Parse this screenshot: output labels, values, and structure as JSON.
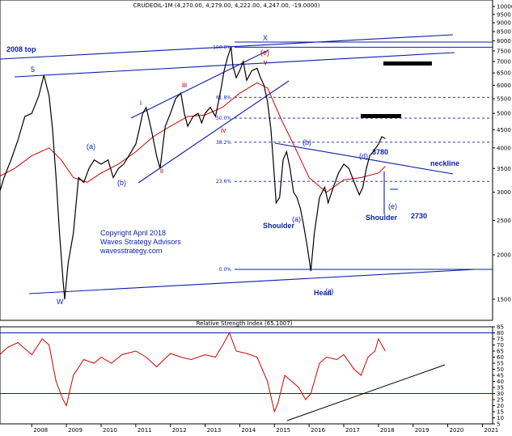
{
  "chart_data": [
    {
      "type": "line",
      "title": "CRUDEOIL-1M (4,270.00, 4,279.00, 4,222.00, 4,247.00, -19.0000)",
      "ylim": [
        1350,
        10000
      ],
      "y_scale": "log",
      "y_ticks": [
        10000,
        9500,
        9000,
        8500,
        8000,
        7500,
        7000,
        6500,
        6000,
        5500,
        5000,
        4500,
        4000,
        3500,
        3000,
        2500,
        2000,
        1500
      ],
      "x_ticks": [
        "2008",
        "2009",
        "2010",
        "2011",
        "2012",
        "2013",
        "2014",
        "2015",
        "2016",
        "2017",
        "2018",
        "2019",
        "2020",
        "2021"
      ],
      "series": [
        {
          "values": [
            [
              2007.0,
              2850
            ],
            [
              2007.2,
              3300
            ],
            [
              2007.4,
              3700
            ],
            [
              2007.6,
              4200
            ],
            [
              2007.8,
              4900
            ],
            [
              2008.0,
              5000
            ],
            [
              2008.2,
              5600
            ],
            [
              2008.35,
              6400
            ],
            [
              2008.5,
              5600
            ],
            [
              2008.6,
              4500
            ],
            [
              2008.7,
              3300
            ],
            [
              2008.8,
              2300
            ],
            [
              2008.9,
              1700
            ],
            [
              2008.95,
              1500
            ],
            [
              2009.05,
              1900
            ],
            [
              2009.2,
              2300
            ],
            [
              2009.35,
              3300
            ],
            [
              2009.5,
              3200
            ],
            [
              2009.65,
              3500
            ],
            [
              2009.8,
              3700
            ],
            [
              2010.0,
              3600
            ],
            [
              2010.2,
              3700
            ],
            [
              2010.35,
              3300
            ],
            [
              2010.5,
              3500
            ],
            [
              2010.65,
              3600
            ],
            [
              2010.8,
              3800
            ],
            [
              2011.0,
              4100
            ],
            [
              2011.1,
              4500
            ],
            [
              2011.2,
              5000
            ],
            [
              2011.3,
              5200
            ],
            [
              2011.45,
              4500
            ],
            [
              2011.6,
              3800
            ],
            [
              2011.7,
              3500
            ],
            [
              2011.85,
              4600
            ],
            [
              2012.0,
              5000
            ],
            [
              2012.15,
              5500
            ],
            [
              2012.3,
              5700
            ],
            [
              2012.4,
              5000
            ],
            [
              2012.5,
              4600
            ],
            [
              2012.65,
              4900
            ],
            [
              2012.8,
              5000
            ],
            [
              2012.9,
              4700
            ],
            [
              2013.0,
              5000
            ],
            [
              2013.15,
              5200
            ],
            [
              2013.3,
              4900
            ],
            [
              2013.45,
              5800
            ],
            [
              2013.55,
              6600
            ],
            [
              2013.65,
              7200
            ],
            [
              2013.75,
              7700
            ],
            [
              2013.8,
              6800
            ],
            [
              2013.9,
              6300
            ],
            [
              2014.0,
              6600
            ],
            [
              2014.1,
              7000
            ],
            [
              2014.2,
              6200
            ],
            [
              2014.35,
              6600
            ],
            [
              2014.5,
              6700
            ],
            [
              2014.6,
              6300
            ],
            [
              2014.7,
              6000
            ],
            [
              2014.8,
              5400
            ],
            [
              2014.9,
              4500
            ],
            [
              2015.0,
              3300
            ],
            [
              2015.05,
              2800
            ],
            [
              2015.15,
              2900
            ],
            [
              2015.25,
              3700
            ],
            [
              2015.35,
              3900
            ],
            [
              2015.45,
              3500
            ],
            [
              2015.55,
              3000
            ],
            [
              2015.65,
              2900
            ],
            [
              2015.75,
              2700
            ],
            [
              2015.85,
              2400
            ],
            [
              2015.95,
              2100
            ],
            [
              2016.05,
              1800
            ],
            [
              2016.15,
              2300
            ],
            [
              2016.3,
              2900
            ],
            [
              2016.45,
              3100
            ],
            [
              2016.55,
              2800
            ],
            [
              2016.7,
              3100
            ],
            [
              2016.85,
              3400
            ],
            [
              2017.0,
              3600
            ],
            [
              2017.15,
              3500
            ],
            [
              2017.3,
              3200
            ],
            [
              2017.45,
              2950
            ],
            [
              2017.55,
              3100
            ],
            [
              2017.65,
              3500
            ],
            [
              2017.75,
              3800
            ],
            [
              2017.85,
              3900
            ],
            [
              2018.0,
              4100
            ],
            [
              2018.1,
              4300
            ],
            [
              2018.2,
              4247
            ]
          ]
        },
        {
          "values": [
            [
              2007.0,
              3300
            ],
            [
              2007.5,
              3500
            ],
            [
              2008.0,
              3800
            ],
            [
              2008.5,
              4000
            ],
            [
              2008.85,
              3700
            ],
            [
              2009.2,
              3300
            ],
            [
              2009.6,
              3200
            ],
            [
              2010.0,
              3400
            ],
            [
              2010.5,
              3600
            ],
            [
              2011.0,
              3900
            ],
            [
              2011.5,
              4300
            ],
            [
              2012.0,
              4600
            ],
            [
              2012.5,
              4900
            ],
            [
              2013.0,
              4950
            ],
            [
              2013.5,
              5200
            ],
            [
              2014.0,
              5700
            ],
            [
              2014.5,
              6100
            ],
            [
              2014.8,
              5900
            ],
            [
              2015.2,
              4800
            ],
            [
              2015.6,
              4000
            ],
            [
              2016.0,
              3300
            ],
            [
              2016.5,
              3000
            ],
            [
              2017.0,
              3250
            ],
            [
              2017.5,
              3300
            ],
            [
              2018.0,
              3400
            ],
            [
              2018.2,
              3550
            ]
          ]
        }
      ],
      "fibonacci": [
        {
          "label": "100.0%",
          "value": 7680
        },
        {
          "label": "61.8%",
          "value": 5550
        },
        {
          "label": "50.0%",
          "value": 4850
        },
        {
          "label": "38.2%",
          "value": 4150
        },
        {
          "label": "23.6%",
          "value": 3220
        },
        {
          "label": "0.0%",
          "value": 1820
        }
      ],
      "annotations": {
        "wave_labels_blue": [
          "5",
          "W",
          "X",
          "(a)",
          "(b)",
          "(c)",
          "(d)",
          "(e)",
          "(a)",
          "(b)",
          "(e)"
        ],
        "wave_labels_red": [
          "i",
          "ii",
          "iii",
          "iv",
          "v"
        ],
        "text": [
          "2008 top",
          "Shoulder",
          "Head",
          "Shoulder",
          "3780",
          "2730",
          "neckline",
          "Copyright April 2018",
          "Waves Strategy Advisors",
          "wavesstrategy.com"
        ]
      }
    },
    {
      "type": "line",
      "title": "Relative Strength Index (65.1007)",
      "ylim": [
        5,
        85
      ],
      "y_ticks": [
        85,
        80,
        75,
        70,
        65,
        60,
        55,
        50,
        45,
        40,
        35,
        30,
        25,
        20,
        15,
        10,
        5
      ],
      "series": [
        {
          "values": [
            [
              2007.0,
              60
            ],
            [
              2007.3,
              68
            ],
            [
              2007.6,
              72
            ],
            [
              2008.0,
              62
            ],
            [
              2008.3,
              75
            ],
            [
              2008.5,
              70
            ],
            [
              2008.7,
              40
            ],
            [
              2008.9,
              25
            ],
            [
              2009.0,
              20
            ],
            [
              2009.2,
              45
            ],
            [
              2009.5,
              58
            ],
            [
              2009.8,
              55
            ],
            [
              2010.0,
              60
            ],
            [
              2010.3,
              55
            ],
            [
              2010.6,
              62
            ],
            [
              2011.0,
              65
            ],
            [
              2011.3,
              60
            ],
            [
              2011.6,
              52
            ],
            [
              2012.0,
              63
            ],
            [
              2012.3,
              60
            ],
            [
              2012.6,
              58
            ],
            [
              2013.0,
              62
            ],
            [
              2013.3,
              60
            ],
            [
              2013.55,
              72
            ],
            [
              2013.7,
              80
            ],
            [
              2013.9,
              65
            ],
            [
              2014.2,
              63
            ],
            [
              2014.5,
              60
            ],
            [
              2014.8,
              40
            ],
            [
              2015.0,
              15
            ],
            [
              2015.1,
              22
            ],
            [
              2015.3,
              45
            ],
            [
              2015.5,
              40
            ],
            [
              2015.7,
              35
            ],
            [
              2015.9,
              25
            ],
            [
              2016.05,
              30
            ],
            [
              2016.3,
              55
            ],
            [
              2016.5,
              60
            ],
            [
              2016.8,
              58
            ],
            [
              2017.0,
              62
            ],
            [
              2017.3,
              50
            ],
            [
              2017.5,
              45
            ],
            [
              2017.7,
              60
            ],
            [
              2017.9,
              65
            ],
            [
              2018.0,
              75
            ],
            [
              2018.1,
              70
            ],
            [
              2018.2,
              65
            ]
          ]
        }
      ],
      "reference_lines": [
        80,
        30
      ]
    }
  ]
}
